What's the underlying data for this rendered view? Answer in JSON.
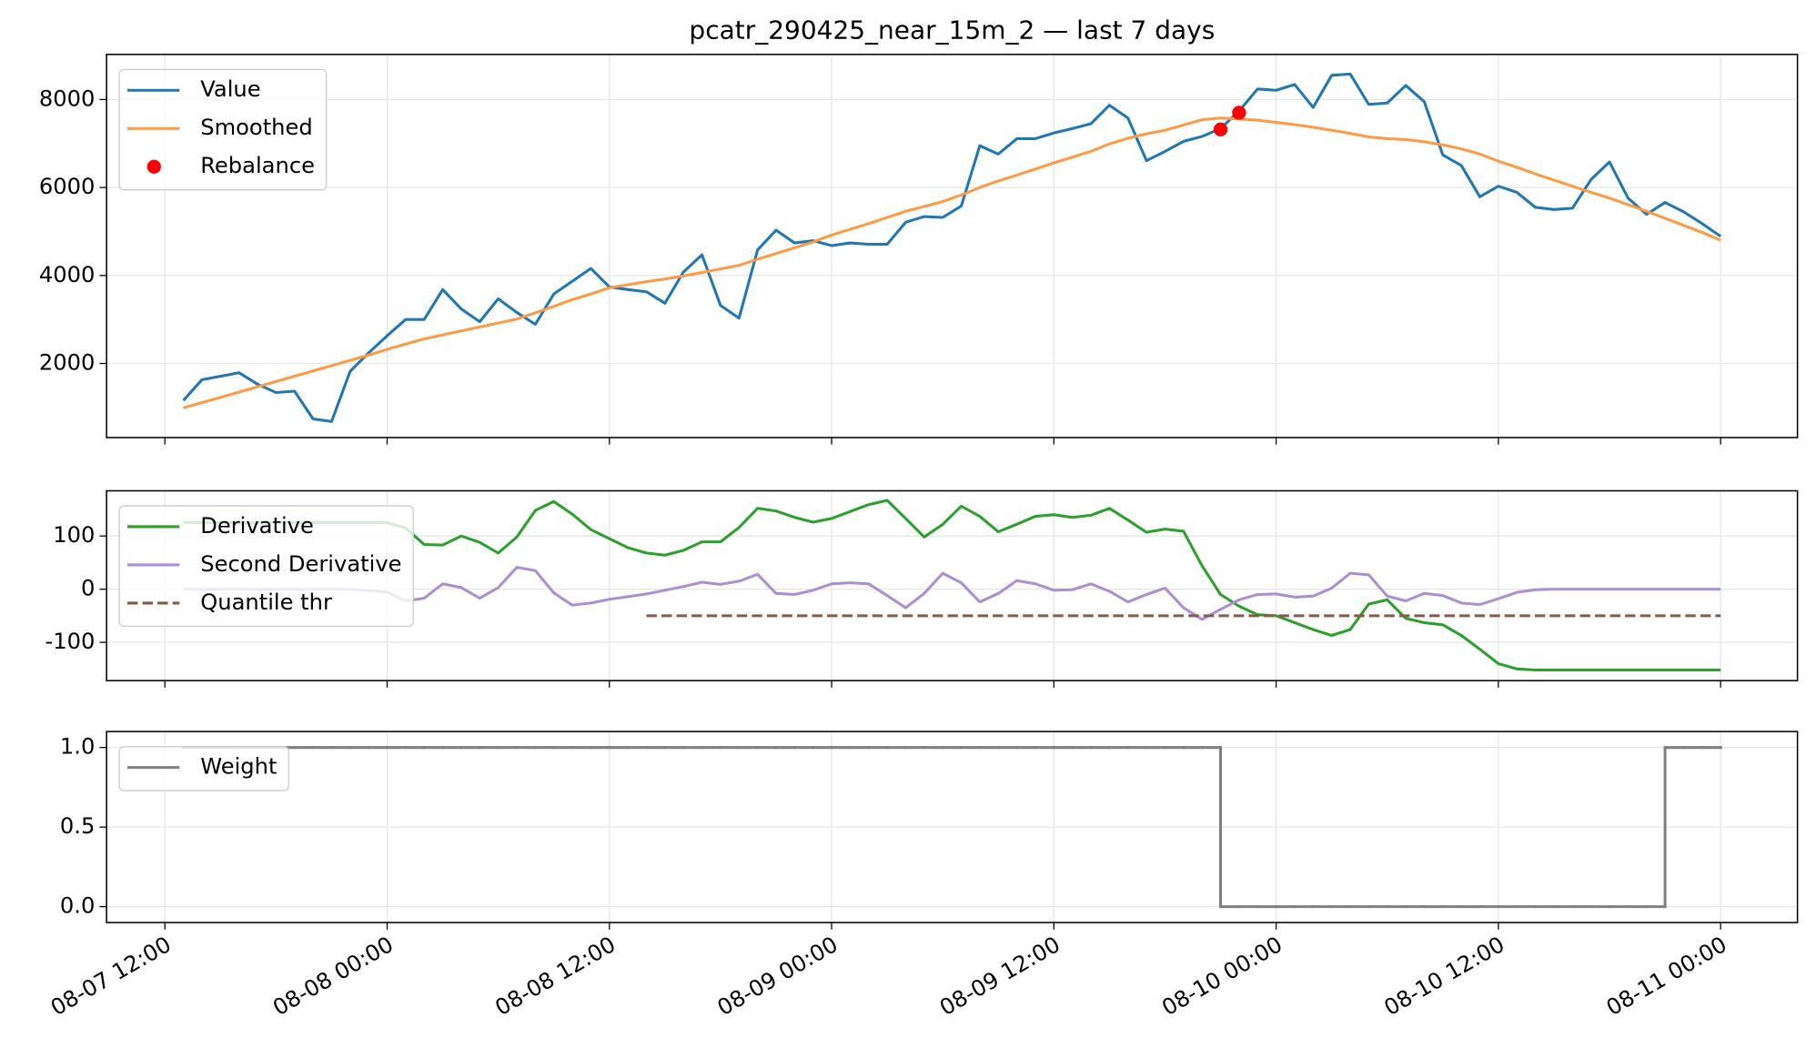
{
  "chart_data": [
    {
      "type": "line",
      "title": "pcatr_290425_near_15m_2 — last 7 days",
      "grid": true,
      "legend": "upper left",
      "xlim": [
        "08-07 08:51",
        "08-11 04:09"
      ],
      "ylim": [
        316,
        9026
      ],
      "yticks": [
        2000,
        4000,
        6000,
        8000
      ],
      "x": [
        "08-07 13:00",
        "08-07 14:00",
        "08-07 15:00",
        "08-07 16:00",
        "08-07 17:00",
        "08-07 18:00",
        "08-07 19:00",
        "08-07 20:00",
        "08-07 21:00",
        "08-07 22:00",
        "08-07 23:00",
        "08-08 00:00",
        "08-08 01:00",
        "08-08 02:00",
        "08-08 03:00",
        "08-08 04:00",
        "08-08 05:00",
        "08-08 06:00",
        "08-08 07:00",
        "08-08 08:00",
        "08-08 09:00",
        "08-08 10:00",
        "08-08 11:00",
        "08-08 12:00",
        "08-08 13:00",
        "08-08 14:00",
        "08-08 15:00",
        "08-08 16:00",
        "08-08 17:00",
        "08-08 18:00",
        "08-08 19:00",
        "08-08 20:00",
        "08-08 21:00",
        "08-08 22:00",
        "08-08 23:00",
        "08-09 00:00",
        "08-09 01:00",
        "08-09 02:00",
        "08-09 03:00",
        "08-09 04:00",
        "08-09 05:00",
        "08-09 06:00",
        "08-09 07:00",
        "08-09 08:00",
        "08-09 09:00",
        "08-09 10:00",
        "08-09 11:00",
        "08-09 12:00",
        "08-09 13:00",
        "08-09 14:00",
        "08-09 15:00",
        "08-09 16:00",
        "08-09 17:00",
        "08-09 18:00",
        "08-09 19:00",
        "08-09 20:00",
        "08-09 21:00",
        "08-09 22:00",
        "08-09 23:00",
        "08-10 00:00",
        "08-10 01:00",
        "08-10 02:00",
        "08-10 03:00",
        "08-10 04:00",
        "08-10 05:00",
        "08-10 06:00",
        "08-10 07:00",
        "08-10 08:00",
        "08-10 09:00",
        "08-10 10:00",
        "08-10 11:00",
        "08-10 12:00",
        "08-10 13:00",
        "08-10 14:00",
        "08-10 15:00",
        "08-10 16:00",
        "08-10 17:00",
        "08-10 18:00",
        "08-10 19:00",
        "08-10 20:00",
        "08-10 21:00",
        "08-10 22:00",
        "08-10 23:00",
        "08-11 00:00"
      ],
      "series": [
        {
          "name": "Value",
          "color": "#1f77b4",
          "values": [
            1160,
            1630,
            1710,
            1790,
            1530,
            1340,
            1370,
            740,
            680,
            1820,
            2240,
            2630,
            3000,
            3000,
            3680,
            3240,
            2950,
            3470,
            3160,
            2890,
            3580,
            3870,
            4160,
            3740,
            3680,
            3630,
            3370,
            4080,
            4470,
            3320,
            3030,
            4580,
            5030,
            4740,
            4790,
            4680,
            4740,
            4710,
            4710,
            5210,
            5340,
            5320,
            5580,
            6950,
            6760,
            7110,
            7110,
            7240,
            7340,
            7450,
            7870,
            7580,
            6610,
            6820,
            7050,
            7160,
            7340,
            7740,
            8240,
            8210,
            8340,
            7820,
            8550,
            8580,
            7890,
            7920,
            8320,
            7950,
            6740,
            6500,
            5790,
            6030,
            5890,
            5550,
            5500,
            5530,
            6180,
            6580,
            5760,
            5390,
            5660,
            5450,
            5180,
            4890
          ]
        },
        {
          "name": "Smoothed",
          "color": "#fe9a44",
          "values": [
            990,
            1110,
            1230,
            1350,
            1470,
            1590,
            1710,
            1830,
            1950,
            2070,
            2190,
            2320,
            2440,
            2560,
            2650,
            2740,
            2830,
            2920,
            3010,
            3150,
            3300,
            3450,
            3580,
            3720,
            3790,
            3860,
            3920,
            3990,
            4070,
            4150,
            4230,
            4370,
            4500,
            4630,
            4760,
            4920,
            5050,
            5180,
            5320,
            5460,
            5570,
            5680,
            5830,
            6000,
            6150,
            6280,
            6420,
            6560,
            6690,
            6820,
            6990,
            7120,
            7220,
            7300,
            7420,
            7540,
            7580,
            7560,
            7530,
            7480,
            7430,
            7370,
            7300,
            7230,
            7150,
            7110,
            7090,
            7040,
            6970,
            6880,
            6760,
            6600,
            6460,
            6310,
            6170,
            6030,
            5890,
            5760,
            5610,
            5460,
            5300,
            5140,
            4980,
            4800
          ]
        },
        {
          "name": "Rebalance",
          "type": "scatter",
          "color": "#ff0000",
          "x": [
            "08-09 21:00",
            "08-09 22:00"
          ],
          "values": [
            7320,
            7700
          ]
        }
      ]
    },
    {
      "type": "line",
      "grid": true,
      "legend": "upper left",
      "xlim": [
        "08-07 08:51",
        "08-11 04:09"
      ],
      "ylim": [
        -172,
        185
      ],
      "yticks": [
        -100,
        0,
        100
      ],
      "x": [
        "08-07 13:00",
        "08-07 14:00",
        "08-07 15:00",
        "08-07 16:00",
        "08-07 17:00",
        "08-07 18:00",
        "08-07 19:00",
        "08-07 20:00",
        "08-07 21:00",
        "08-07 22:00",
        "08-07 23:00",
        "08-08 00:00",
        "08-08 01:00",
        "08-08 02:00",
        "08-08 03:00",
        "08-08 04:00",
        "08-08 05:00",
        "08-08 06:00",
        "08-08 07:00",
        "08-08 08:00",
        "08-08 09:00",
        "08-08 10:00",
        "08-08 11:00",
        "08-08 12:00",
        "08-08 13:00",
        "08-08 14:00",
        "08-08 15:00",
        "08-08 16:00",
        "08-08 17:00",
        "08-08 18:00",
        "08-08 19:00",
        "08-08 20:00",
        "08-08 21:00",
        "08-08 22:00",
        "08-08 23:00",
        "08-09 00:00",
        "08-09 01:00",
        "08-09 02:00",
        "08-09 03:00",
        "08-09 04:00",
        "08-09 05:00",
        "08-09 06:00",
        "08-09 07:00",
        "08-09 08:00",
        "08-09 09:00",
        "08-09 10:00",
        "08-09 11:00",
        "08-09 12:00",
        "08-09 13:00",
        "08-09 14:00",
        "08-09 15:00",
        "08-09 16:00",
        "08-09 17:00",
        "08-09 18:00",
        "08-09 19:00",
        "08-09 20:00",
        "08-09 21:00",
        "08-09 22:00",
        "08-09 23:00",
        "08-10 00:00",
        "08-10 01:00",
        "08-10 02:00",
        "08-10 03:00",
        "08-10 04:00",
        "08-10 05:00",
        "08-10 06:00",
        "08-10 07:00",
        "08-10 08:00",
        "08-10 09:00",
        "08-10 10:00",
        "08-10 11:00",
        "08-10 12:00",
        "08-10 13:00",
        "08-10 14:00",
        "08-10 15:00",
        "08-10 16:00",
        "08-10 17:00",
        "08-10 18:00",
        "08-10 19:00",
        "08-10 20:00",
        "08-10 21:00",
        "08-10 22:00",
        "08-10 23:00",
        "08-11 00:00"
      ],
      "series": [
        {
          "name": "Derivative",
          "color": "#2ca02c",
          "values": [
            125,
            125,
            125,
            125,
            125,
            125,
            125,
            125,
            125,
            125,
            125,
            125,
            115,
            84,
            83,
            100,
            88,
            68,
            98,
            148,
            165,
            141,
            112,
            95,
            78,
            68,
            64,
            73,
            89,
            89,
            116,
            152,
            147,
            135,
            126,
            133,
            146,
            159,
            167,
            133,
            98,
            122,
            156,
            137,
            108,
            122,
            137,
            140,
            135,
            139,
            152,
            130,
            107,
            113,
            109,
            44,
            -10,
            -32,
            -48,
            -50,
            -63,
            -76,
            -87,
            -76,
            -28,
            -20,
            -55,
            -63,
            -67,
            -87,
            -113,
            -140,
            -150,
            -152,
            -152,
            -152,
            -152,
            -152,
            -152,
            -152,
            -152,
            -152,
            -152,
            -152
          ]
        },
        {
          "name": "Second Derivative",
          "color": "#ac8fd2",
          "values": [
            0,
            0,
            0,
            0,
            0,
            0,
            0,
            0,
            0,
            0,
            -3,
            -5,
            -22,
            -17,
            10,
            3,
            -17,
            3,
            41,
            35,
            -7,
            -30,
            -26,
            -19,
            -14,
            -9,
            -2,
            5,
            13,
            9,
            15,
            28,
            -8,
            -10,
            -2,
            10,
            12,
            10,
            -12,
            -35,
            -8,
            30,
            12,
            -24,
            -8,
            16,
            10,
            -2,
            -1,
            10,
            -4,
            -24,
            -10,
            2,
            -35,
            -57,
            -38,
            -20,
            -10,
            -9,
            -15,
            -13,
            2,
            30,
            27,
            -13,
            -22,
            -8,
            -12,
            -26,
            -29,
            -18,
            -6,
            -1,
            0,
            0,
            0,
            0,
            0,
            0,
            0,
            0,
            0,
            0
          ]
        },
        {
          "name": "Quantile thr",
          "color": "#8c564b",
          "linestyle": "dashed",
          "values": [
            null,
            null,
            null,
            null,
            null,
            null,
            null,
            null,
            null,
            null,
            null,
            null,
            null,
            null,
            null,
            null,
            null,
            null,
            null,
            null,
            null,
            null,
            null,
            null,
            null,
            -50,
            -50,
            -50,
            -50,
            -50,
            -50,
            -50,
            -50,
            -50,
            -50,
            -50,
            -50,
            -50,
            -50,
            -50,
            -50,
            -50,
            -50,
            -50,
            -50,
            -50,
            -50,
            -50,
            -50,
            -50,
            -50,
            -50,
            -50,
            -50,
            -50,
            -50,
            -50,
            -50,
            -50,
            -50,
            -50,
            -50,
            -50,
            -50,
            -50,
            -50,
            -50,
            -50,
            -50,
            -50,
            -50,
            -50,
            -50,
            -50,
            -50,
            -50,
            -50,
            -50,
            -50,
            -50,
            -50,
            -50,
            -50,
            -50
          ]
        }
      ]
    },
    {
      "type": "line",
      "grid": true,
      "legend": "upper left",
      "xlim": [
        "08-07 08:51",
        "08-11 04:09"
      ],
      "ylim": [
        -0.1,
        1.1
      ],
      "yticks": [
        {
          "value": 0,
          "label": "0.0"
        },
        0.5,
        {
          "value": 1,
          "label": "1.0"
        }
      ],
      "xticks": [
        "08-07 12:00",
        "08-08 00:00",
        "08-08 12:00",
        "08-09 00:00",
        "08-09 12:00",
        "08-10 00:00",
        "08-10 12:00",
        "08-11 00:00"
      ],
      "x": [
        "08-07 13:00",
        "08-07 14:00",
        "08-07 15:00",
        "08-07 16:00",
        "08-07 17:00",
        "08-07 18:00",
        "08-07 19:00",
        "08-07 20:00",
        "08-07 21:00",
        "08-07 22:00",
        "08-07 23:00",
        "08-08 00:00",
        "08-08 01:00",
        "08-08 02:00",
        "08-08 03:00",
        "08-08 04:00",
        "08-08 05:00",
        "08-08 06:00",
        "08-08 07:00",
        "08-08 08:00",
        "08-08 09:00",
        "08-08 10:00",
        "08-08 11:00",
        "08-08 12:00",
        "08-08 13:00",
        "08-08 14:00",
        "08-08 15:00",
        "08-08 16:00",
        "08-08 17:00",
        "08-08 18:00",
        "08-08 19:00",
        "08-08 20:00",
        "08-08 21:00",
        "08-08 22:00",
        "08-08 23:00",
        "08-09 00:00",
        "08-09 01:00",
        "08-09 02:00",
        "08-09 03:00",
        "08-09 04:00",
        "08-09 05:00",
        "08-09 06:00",
        "08-09 07:00",
        "08-09 08:00",
        "08-09 09:00",
        "08-09 10:00",
        "08-09 11:00",
        "08-09 12:00",
        "08-09 13:00",
        "08-09 14:00",
        "08-09 15:00",
        "08-09 16:00",
        "08-09 17:00",
        "08-09 18:00",
        "08-09 19:00",
        "08-09 20:00",
        "08-09 21:00",
        "08-09 22:00",
        "08-09 23:00",
        "08-10 00:00",
        "08-10 01:00",
        "08-10 02:00",
        "08-10 03:00",
        "08-10 04:00",
        "08-10 05:00",
        "08-10 06:00",
        "08-10 07:00",
        "08-10 08:00",
        "08-10 09:00",
        "08-10 10:00",
        "08-10 11:00",
        "08-10 12:00",
        "08-10 13:00",
        "08-10 14:00",
        "08-10 15:00",
        "08-10 16:00",
        "08-10 17:00",
        "08-10 18:00",
        "08-10 19:00",
        "08-10 20:00",
        "08-10 21:00",
        "08-10 22:00",
        "08-10 23:00",
        "08-11 00:00"
      ],
      "series": [
        {
          "name": "Weight",
          "color": "#7f7f7f",
          "drawstyle": "steps-post",
          "values": [
            1,
            1,
            1,
            1,
            1,
            1,
            1,
            1,
            1,
            1,
            1,
            1,
            1,
            1,
            1,
            1,
            1,
            1,
            1,
            1,
            1,
            1,
            1,
            1,
            1,
            1,
            1,
            1,
            1,
            1,
            1,
            1,
            1,
            1,
            1,
            1,
            1,
            1,
            1,
            1,
            1,
            1,
            1,
            1,
            1,
            1,
            1,
            1,
            1,
            1,
            1,
            1,
            1,
            1,
            1,
            1,
            0,
            0,
            0,
            0,
            0,
            0,
            0,
            0,
            0,
            0,
            0,
            0,
            0,
            0,
            0,
            0,
            0,
            0,
            0,
            0,
            0,
            0,
            0,
            0,
            1,
            1,
            1,
            1
          ]
        }
      ]
    }
  ]
}
